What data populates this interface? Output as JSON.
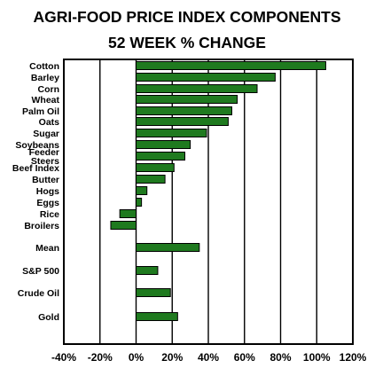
{
  "chart_data": {
    "type": "bar",
    "orientation": "horizontal",
    "title": "AGRI-FOOD PRICE INDEX COMPONENTS",
    "subtitle": "52 WEEK % CHANGE",
    "xlabel": "",
    "ylabel": "",
    "xlim": [
      -40,
      120
    ],
    "x_ticks": [
      "-40%",
      "-20%",
      "0%",
      "20%",
      "40%",
      "60%",
      "80%",
      "100%",
      "120%"
    ],
    "grid": true,
    "bar_color": "#1f7a1f",
    "categories": [
      "Cotton",
      "Barley",
      "Corn",
      "Wheat",
      "Palm Oil",
      "Oats",
      "Sugar",
      "Soybeans",
      "Feeder Steers",
      "Beef Index",
      "Butter",
      "Hogs",
      "Eggs",
      "Rice",
      "Broilers",
      "Mean",
      "S&P 500",
      "Crude Oil",
      "Gold"
    ],
    "values": [
      105,
      77,
      67,
      56,
      53,
      51,
      39,
      30,
      27,
      21,
      16,
      6,
      3,
      -9,
      -14,
      35,
      12,
      19,
      23
    ]
  }
}
